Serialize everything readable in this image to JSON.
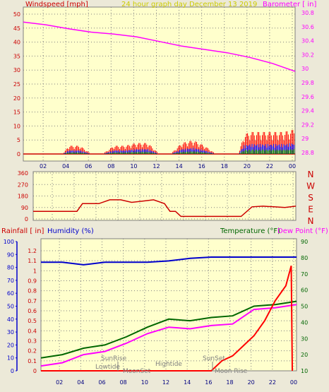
{
  "panel1": {
    "left_label": "Windspeed [mph]",
    "center_label": "24 hour graph day   December 13 2019",
    "right_label": "Barometer [ in]",
    "left_ticks": [
      "0",
      "5",
      "10",
      "15",
      "20",
      "25",
      "30",
      "35",
      "40",
      "45",
      "50"
    ],
    "right_ticks": [
      "28.8",
      "29",
      "29.2",
      "29.4",
      "29.6",
      "29.8",
      "30",
      "30.2",
      "30.4",
      "30.6",
      "30.8"
    ],
    "x_ticks": [
      "02",
      "04",
      "06",
      "08",
      "10",
      "12",
      "14",
      "16",
      "18",
      "20",
      "22",
      "00"
    ]
  },
  "panel2": {
    "left_ticks": [
      "0",
      "90",
      "180",
      "270",
      "360"
    ],
    "dir_labels": [
      "N",
      "W",
      "S",
      "E",
      "N"
    ]
  },
  "panel3": {
    "rain_label": "Rainfall [ in]",
    "humidity_label": "Humidity (%)",
    "temp_label": "Temperature (°F)",
    "dew_label": "Dew Point (°F)",
    "rain_ticks": [
      "0",
      "0.1",
      "0.2",
      "0.3",
      "0.4",
      "0.5",
      "0.6",
      "0.7",
      "0.8",
      "0.9",
      "1",
      "1.1",
      "1.2"
    ],
    "hum_ticks": [
      "0",
      "10",
      "20",
      "30",
      "40",
      "50",
      "60",
      "70",
      "80",
      "90",
      "100"
    ],
    "temp_ticks": [
      "10",
      "20",
      "30",
      "40",
      "50",
      "60",
      "70",
      "80",
      "90"
    ],
    "x_ticks": [
      "02",
      "04",
      "06",
      "08",
      "10",
      "12",
      "14",
      "16",
      "18",
      "20",
      "22",
      "00"
    ],
    "events": {
      "sunrise": "SunRise",
      "lowtide": "Lowtide",
      "moonset": "MoonSet",
      "hightide": "Hightide",
      "sunset": "SunSet",
      "moonrise": "Moon Rise"
    }
  },
  "colors": {
    "background": "#ffffcc",
    "wind_gust": "#ff0000",
    "wind_avg": "#0000ff",
    "wind_low": "#008000",
    "barometer": "#ff00ff",
    "direction": "#cc0000",
    "humidity": "#0000cc",
    "temperature": "#006600",
    "dewpoint": "#ff00ff",
    "rainfall": "#ff0000"
  },
  "chart_data": [
    {
      "type": "line",
      "title": "24 hour graph day   December 13 2019",
      "ylabel": "Windspeed [mph]",
      "y2label": "Barometer [ in]",
      "ylim": [
        0,
        50
      ],
      "y2lim": [
        28.7,
        30.8
      ],
      "series": [
        {
          "axis": "right",
          "x": [
            0,
            2,
            4,
            6,
            8,
            10,
            12,
            14,
            16,
            18,
            20,
            22,
            24
          ],
          "values": [
            30.68,
            30.64,
            30.58,
            30.53,
            30.5,
            30.46,
            30.39,
            30.32,
            30.27,
            30.22,
            30.15,
            30.06,
            29.94
          ]
        },
        {
          "axis": "left",
          "x": [
            0,
            2,
            3.5,
            4,
            5,
            6,
            7,
            8,
            9,
            10,
            11,
            12,
            13,
            14,
            15,
            16,
            17,
            18,
            19,
            19.5,
            20,
            21,
            22,
            23,
            24
          ],
          "values": [
            0,
            0,
            0,
            3,
            3,
            0,
            0,
            3,
            3,
            4,
            4,
            0,
            0,
            4,
            5,
            3,
            0,
            0,
            0,
            7,
            8,
            8,
            8,
            8,
            9
          ]
        }
      ]
    },
    {
      "type": "line",
      "ylim": [
        0,
        360
      ],
      "series": [
        {
          "x": [
            0,
            4,
            4.5,
            6,
            7,
            8,
            9,
            10,
            11,
            12,
            12.5,
            13,
            13.5,
            14,
            15,
            16,
            17,
            18,
            19,
            20,
            21,
            22,
            23,
            24
          ],
          "values": [
            60,
            60,
            120,
            120,
            150,
            150,
            130,
            140,
            150,
            120,
            60,
            60,
            20,
            20,
            20,
            20,
            20,
            20,
            20,
            95,
            100,
            95,
            90,
            100
          ]
        }
      ]
    },
    {
      "type": "line",
      "ylabel": "Humidity (%)",
      "y2label": "Temperature (°F)",
      "ylim": [
        0,
        100
      ],
      "y2lim": [
        10,
        90
      ],
      "series": [
        {
          "axis": "left",
          "x": [
            0,
            2,
            4,
            6,
            8,
            10,
            12,
            14,
            16,
            18,
            20,
            22,
            24
          ],
          "values": [
            84,
            84,
            82,
            84,
            84,
            84,
            85,
            87,
            88,
            88,
            88,
            88,
            88
          ]
        },
        {
          "axis": "right",
          "x": [
            0,
            2,
            4,
            6,
            8,
            10,
            12,
            14,
            16,
            18,
            20,
            22,
            24
          ],
          "values": [
            18,
            20,
            24,
            26,
            31,
            37,
            42,
            41,
            43,
            44,
            50,
            51,
            53
          ]
        },
        {
          "axis": "right",
          "x": [
            0,
            2,
            4,
            6,
            8,
            10,
            12,
            14,
            16,
            18,
            20,
            22,
            24
          ],
          "values": [
            13,
            15,
            20,
            22,
            27,
            33,
            37,
            36,
            38,
            39,
            48,
            49,
            51
          ]
        },
        {
          "axis": "rain",
          "x": [
            0,
            14,
            16,
            17,
            18,
            19,
            20,
            21,
            22,
            23,
            23.5,
            23.6
          ],
          "values": [
            0,
            0,
            0,
            0.1,
            0.15,
            0.25,
            0.35,
            0.5,
            0.7,
            0.85,
            1.05,
            0
          ]
        }
      ]
    }
  ]
}
